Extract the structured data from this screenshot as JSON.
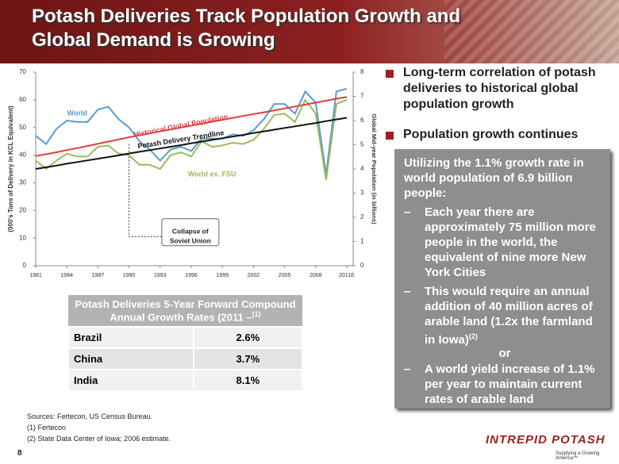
{
  "header": {
    "title": "Potash Deliveries Track Population Growth and Global Demand is Growing"
  },
  "chart_data": {
    "type": "line",
    "ylabel": "(000's Tons of Delivery  in KCL Equivalent)",
    "y2label": "Global Mid-year Population (in billions)",
    "annotation": "Collapse of Soviet Union",
    "x": [
      1981,
      1982,
      1983,
      1984,
      1985,
      1986,
      1987,
      1988,
      1989,
      1990,
      1991,
      1992,
      1993,
      1994,
      1995,
      1996,
      1997,
      1998,
      1999,
      2000,
      2001,
      2002,
      2003,
      2004,
      2005,
      2006,
      2007,
      2008,
      2009,
      2010,
      2011
    ],
    "xlim": [
      1981,
      2011
    ],
    "xticks": [
      1981,
      1984,
      1987,
      1990,
      1993,
      1996,
      1999,
      2002,
      2005,
      2008,
      {
        "value": 2011,
        "label": "2011E"
      }
    ],
    "ylim": [
      0,
      70
    ],
    "yticks": [
      0,
      10,
      20,
      30,
      40,
      50,
      60,
      70
    ],
    "y2lim": [
      0,
      8
    ],
    "y2ticks": [
      0,
      1,
      2,
      3,
      4,
      5,
      6,
      7,
      8
    ],
    "series": [
      {
        "name": "World",
        "color": "#5b9bd5",
        "values": [
          47,
          44,
          49.5,
          52.5,
          52,
          52,
          56.5,
          57.5,
          53,
          50,
          45,
          42,
          38,
          42,
          43,
          41.5,
          46,
          46,
          46,
          47.5,
          47,
          49,
          53,
          58.5,
          58.5,
          55,
          63,
          59,
          33,
          63,
          64
        ]
      },
      {
        "name": "World ex. FSU",
        "color": "#9bbb59",
        "values": [
          38,
          35,
          38,
          40.5,
          39.5,
          39.5,
          43,
          43.5,
          40.5,
          40,
          36.5,
          36.5,
          35,
          40,
          41,
          39.5,
          45,
          43,
          43.5,
          44.5,
          44,
          45.5,
          49.5,
          54.5,
          55,
          52,
          60,
          55,
          31,
          58.5,
          60
        ]
      },
      {
        "name": "Historical Global Population",
        "color": "#e03c3c",
        "axis": "y2",
        "values": [
          4.53,
          4.61,
          4.69,
          4.78,
          4.86,
          4.95,
          5.04,
          5.13,
          5.22,
          5.31,
          5.39,
          5.47,
          5.55,
          5.63,
          5.71,
          5.79,
          5.87,
          5.95,
          6.03,
          6.11,
          6.19,
          6.27,
          6.34,
          6.42,
          6.5,
          6.58,
          6.66,
          6.74,
          6.82,
          6.9,
          6.97
        ]
      },
      {
        "name": "Potash Delivery Trendline",
        "color": "#111111",
        "values": [
          35,
          35.6,
          36.2,
          36.9,
          37.5,
          38.1,
          38.7,
          39.3,
          39.9,
          40.6,
          41.2,
          41.8,
          42.4,
          43,
          43.6,
          44.3,
          44.9,
          45.5,
          46.1,
          46.7,
          47.3,
          48,
          48.6,
          49.2,
          49.8,
          50.4,
          51,
          51.6,
          52.3,
          52.9,
          53.5
        ]
      }
    ]
  },
  "table": {
    "title": "Potash Deliveries  5-Year Forward Compound Annual Growth Rates (2011 –",
    "title_note": "(1)",
    "rows": [
      [
        "Brazil",
        "2.6%"
      ],
      [
        "China",
        "3.7%"
      ],
      [
        "India",
        "8.1%"
      ]
    ]
  },
  "bullets": [
    "Long-term correlation of potash deliveries to historical global population growth",
    "Population growth continues"
  ],
  "box": {
    "intro": "Utilizing the 1.1% growth rate in world population of 6.9 billion people:",
    "dash": "–",
    "items": [
      "Each year there are approximately 75 million more people in the world, the equivalent of nine more New York Cities",
      "This would require an annual addition of 40 million acres of arable land (1.2x the farmland in Iowa)",
      "A world yield increase of 1.1% per year to maintain current rates of arable land"
    ],
    "item_note": "(2)",
    "or": "or"
  },
  "footnotes": [
    "Sources:  Fertecon, US Census Bureau.",
    "(1) Fertecon",
    "(2) State Data Center of Iowa; 2006 estimate."
  ],
  "page_number": "8",
  "logo": {
    "name": "INTREPID POTASH",
    "tagline": "Supplying a Growing America™"
  }
}
